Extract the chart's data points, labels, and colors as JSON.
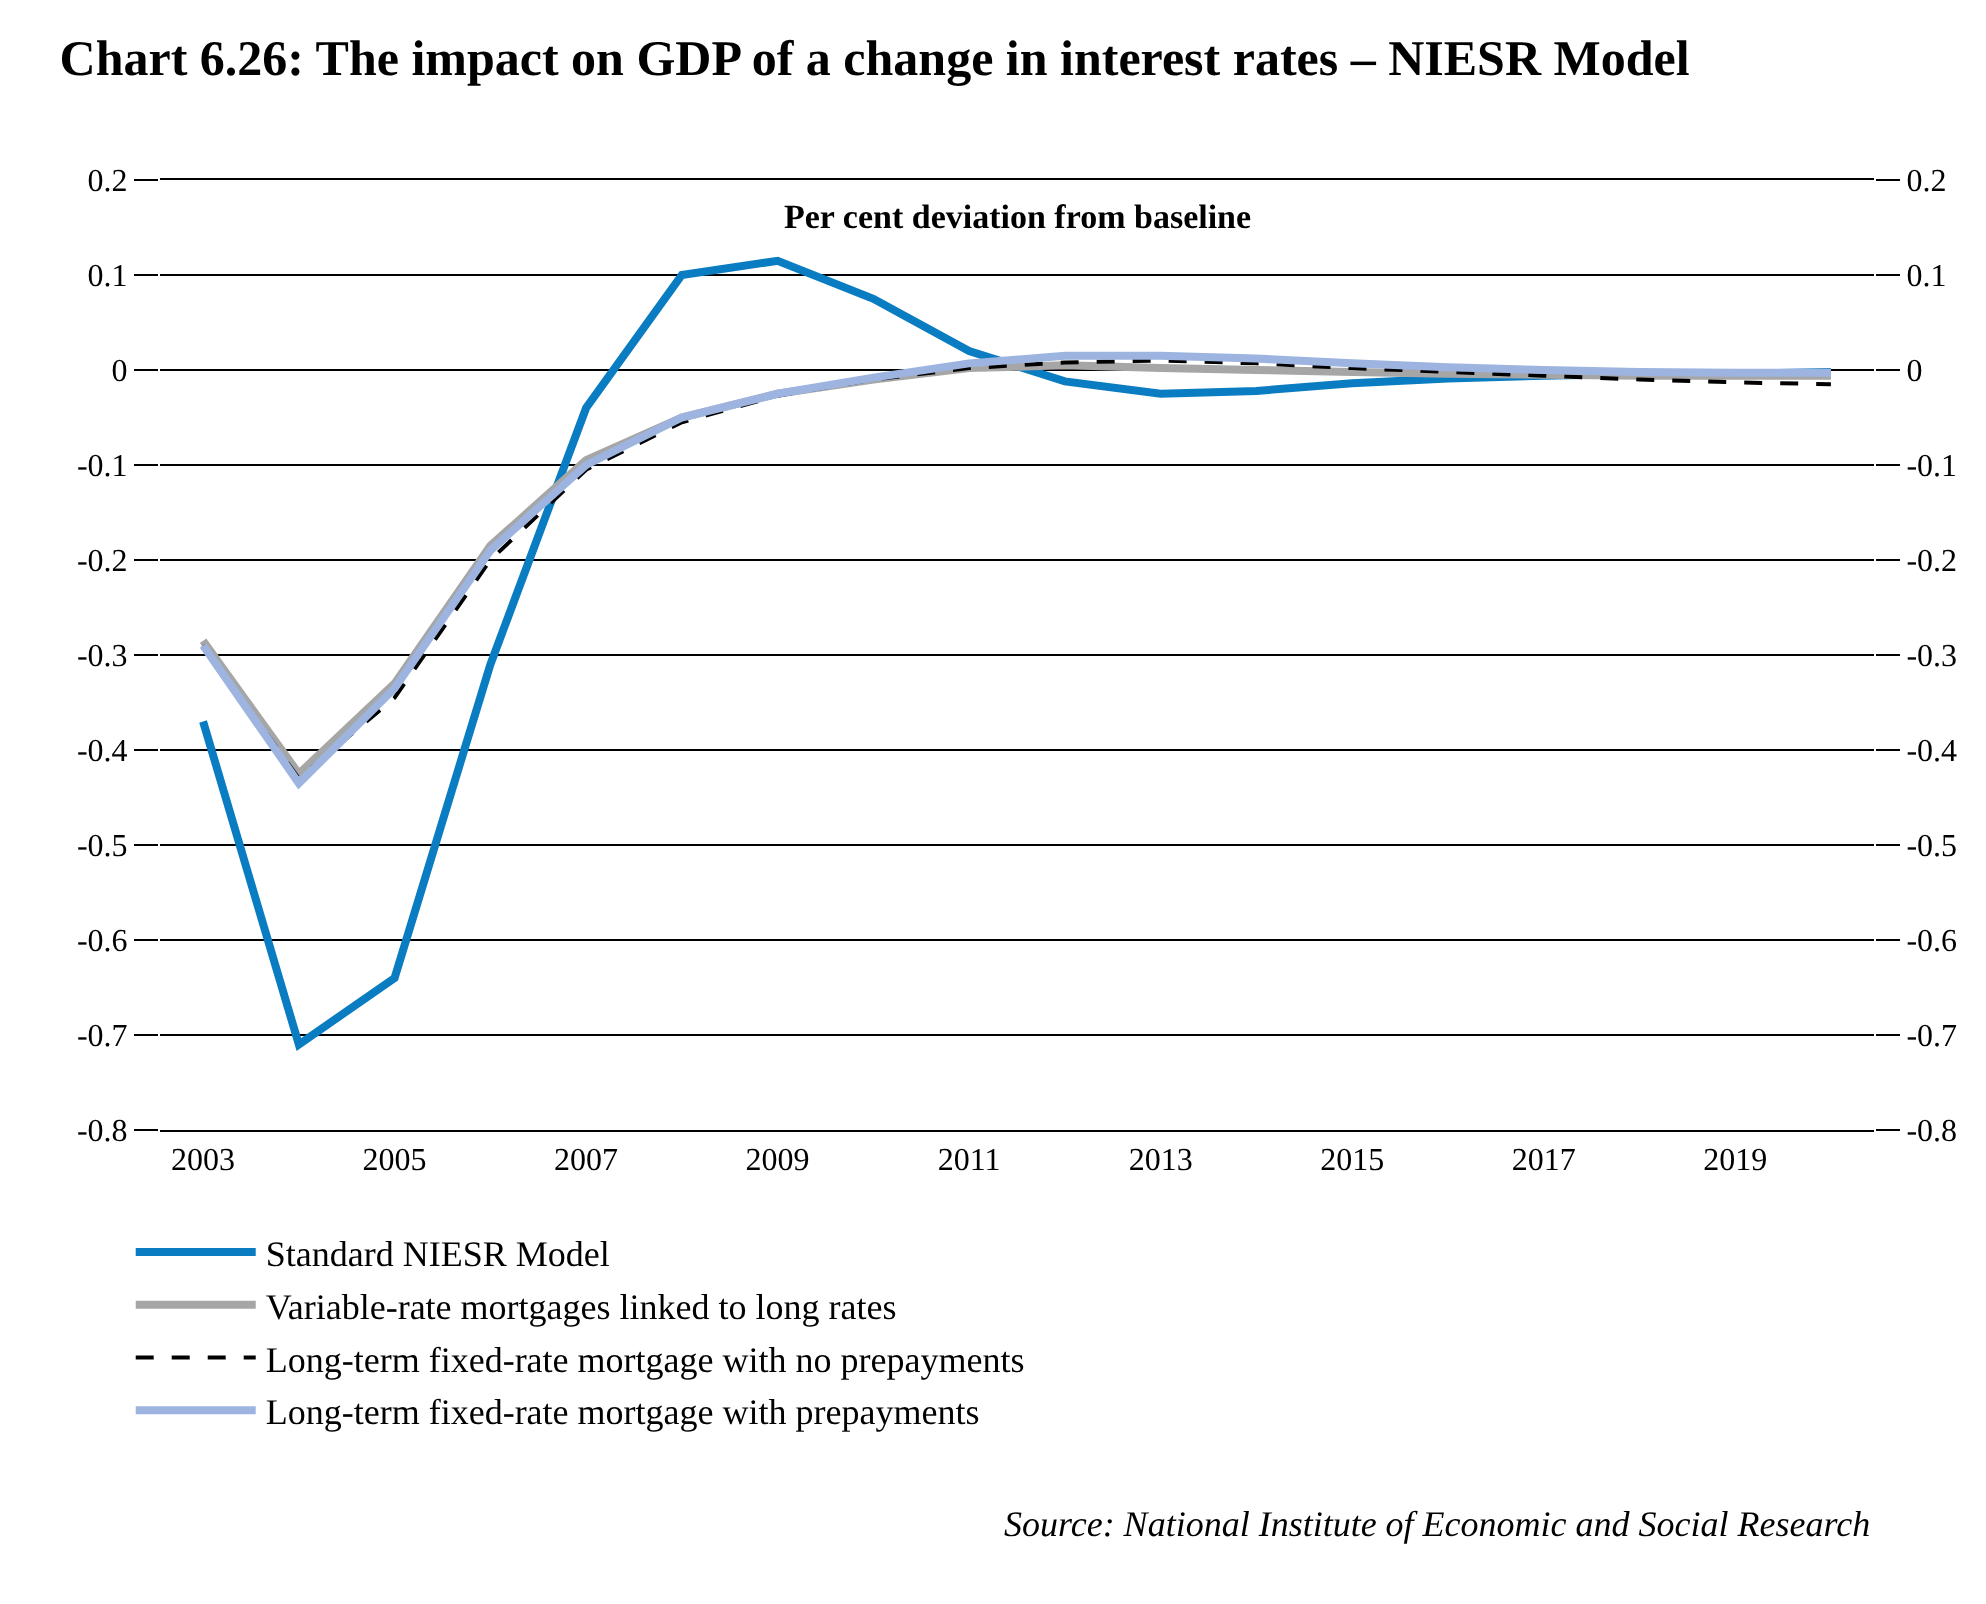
{
  "chart_data": {
    "type": "line",
    "title": "Chart 6.26: The impact on GDP of a change in interest rates – NIESR Model",
    "subtitle": "Per cent deviation from baseline",
    "x": [
      2003,
      2004,
      2005,
      2006,
      2007,
      2008,
      2009,
      2010,
      2011,
      2012,
      2013,
      2014,
      2015,
      2016,
      2017,
      2018,
      2019,
      2020
    ],
    "series": [
      {
        "name": "Standard NIESR Model",
        "color": "#0a7cc1",
        "values": [
          -0.37,
          -0.71,
          -0.64,
          -0.31,
          -0.04,
          0.1,
          0.115,
          0.075,
          0.02,
          -0.012,
          -0.025,
          -0.022,
          -0.014,
          -0.009,
          -0.006,
          -0.004,
          -0.004,
          -0.002
        ]
      },
      {
        "name": "Variable-rate mortgages linked to long rates",
        "color": "#a6a6a6",
        "values": [
          -0.285,
          -0.425,
          -0.33,
          -0.185,
          -0.095,
          -0.05,
          -0.025,
          -0.01,
          0.002,
          0.005,
          0.002,
          0.0,
          -0.002,
          -0.004,
          -0.005,
          -0.006,
          -0.006,
          -0.006
        ]
      },
      {
        "name": "Long-term fixed-rate mortgage with no prepayments",
        "color": "#000000",
        "line_style": "dashed",
        "values": [
          -0.29,
          -0.43,
          -0.345,
          -0.2,
          -0.105,
          -0.055,
          -0.027,
          -0.01,
          0.002,
          0.008,
          0.01,
          0.007,
          0.002,
          -0.002,
          -0.006,
          -0.01,
          -0.013,
          -0.015
        ]
      },
      {
        "name": "Long-term fixed-rate mortgage with prepayments",
        "color": "#9db4e0",
        "values": [
          -0.29,
          -0.435,
          -0.335,
          -0.19,
          -0.1,
          -0.05,
          -0.025,
          -0.008,
          0.007,
          0.015,
          0.015,
          0.012,
          0.007,
          0.003,
          0.0,
          -0.002,
          -0.003,
          -0.003
        ]
      }
    ],
    "xlim": [
      2002.55,
      2020.45
    ],
    "xticks": [
      2003,
      2005,
      2007,
      2009,
      2011,
      2013,
      2015,
      2017,
      2019
    ],
    "ylim": [
      -0.8,
      0.2
    ],
    "yticks": [
      -0.8,
      -0.7,
      -0.6,
      -0.5,
      -0.4,
      -0.3,
      -0.2,
      -0.1,
      0,
      0.1,
      0.2
    ],
    "y2lim": [
      -0.8,
      0.2
    ],
    "y2ticks": [
      -0.8,
      -0.7,
      -0.6,
      -0.5,
      -0.4,
      -0.3,
      -0.2,
      -0.1,
      0,
      0.1,
      0.2
    ],
    "grid": "y",
    "legend": "bottom left",
    "marker": "none",
    "line_style": "solid",
    "annotations": [
      "Source: National Institute of Economic and Social Research"
    ]
  }
}
